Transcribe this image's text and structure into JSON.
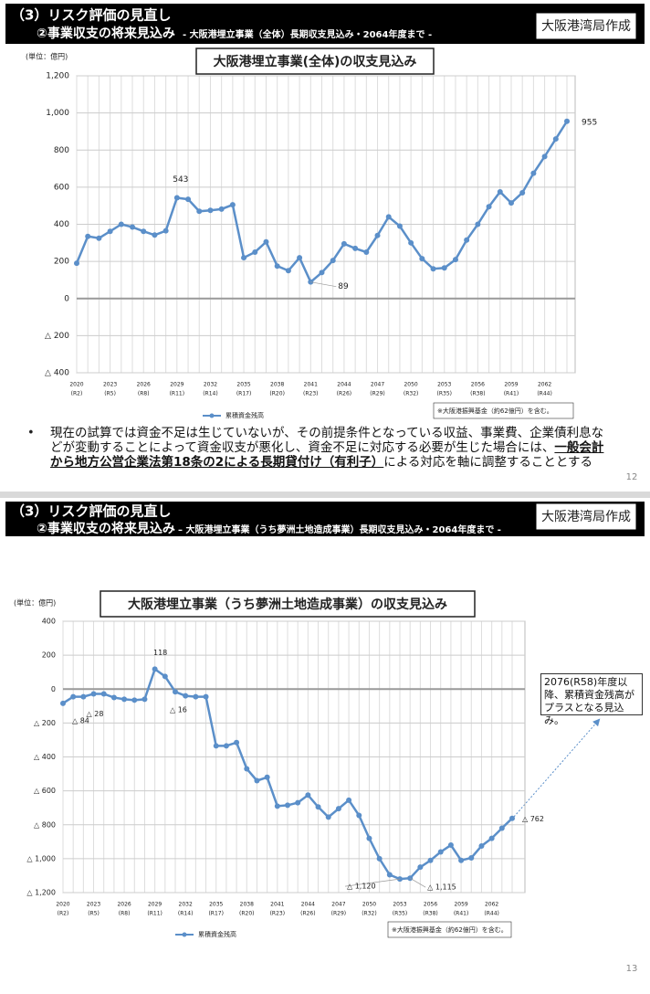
{
  "slides": [
    {
      "section": "（3）リスク評価の見直し",
      "subsection": "②事業収支の将来見込み",
      "subtitle": "- 大阪港埋立事業（全体）長期収支見込み・2064年度まで -",
      "author": "大阪港湾局作成",
      "page": "12",
      "body_before": "現在の試算では資金不足は生じていないが、その前提条件となっている収益、事業費、企業債利息などが変動することによって資金収支が悪化し、資金不足に対応する必要が生じた場合には、",
      "body_emphasis": "一般会計から地方公営企業法第18条の2による長期貸付け（有利子）",
      "body_after": "による対応を軸に調整することとする"
    },
    {
      "section": "（3）リスク評価の見直し",
      "subsection": "②事業収支の将来見込み",
      "subtitle": "– 大阪港埋立事業（うち夢洲土地造成事業）長期収支見込み・2064年度まで -",
      "author": "大阪港湾局作成",
      "page": "13"
    }
  ],
  "chart_data": [
    {
      "type": "line",
      "title": "大阪港埋立事業(全体)の収支見込み",
      "unit_label": "(単位：億円)",
      "note": "※大阪港振興基金（約62億円）を含む。",
      "x": [
        2020,
        2021,
        2022,
        2023,
        2024,
        2025,
        2026,
        2027,
        2028,
        2029,
        2030,
        2031,
        2032,
        2033,
        2034,
        2035,
        2036,
        2037,
        2038,
        2039,
        2040,
        2041,
        2042,
        2043,
        2044,
        2045,
        2046,
        2047,
        2048,
        2049,
        2050,
        2051,
        2052,
        2053,
        2054,
        2055,
        2056,
        2057,
        2058,
        2059,
        2060,
        2061,
        2062,
        2063,
        2064
      ],
      "xlim": [
        2020,
        2064
      ],
      "xticks": [
        2020,
        2023,
        2026,
        2029,
        2032,
        2035,
        2038,
        2041,
        2044,
        2047,
        2050,
        2053,
        2056,
        2059,
        2062
      ],
      "xtick_era_labels": [
        "(R2)",
        "(R5)",
        "(R8)",
        "(R11)",
        "(R14)",
        "(R17)",
        "(R20)",
        "(R23)",
        "(R26)",
        "(R29)",
        "(R32)",
        "(R35)",
        "(R38)",
        "(R41)",
        "(R44)"
      ],
      "ylim": [
        -400,
        1200
      ],
      "yticks": [
        {
          "value": 1200,
          "label": "1,200"
        },
        {
          "value": 1000,
          "label": "1,000"
        },
        800,
        600,
        400,
        200,
        0,
        {
          "value": -200,
          "label": "△ 200"
        },
        {
          "value": -400,
          "label": "△ 400"
        }
      ],
      "grid": true,
      "series": [
        {
          "name": "累積資金残高",
          "color": "#5b8fc9",
          "values": [
            190,
            335,
            325,
            362,
            400,
            385,
            362,
            342,
            365,
            543,
            535,
            470,
            475,
            482,
            505,
            220,
            250,
            305,
            175,
            150,
            220,
            89,
            140,
            205,
            295,
            270,
            250,
            340,
            440,
            390,
            300,
            215,
            160,
            165,
            210,
            315,
            400,
            495,
            575,
            515,
            570,
            675,
            765,
            860,
            955
          ],
          "value_labels": [
            null,
            null,
            null,
            null,
            null,
            null,
            null,
            null,
            null,
            "543",
            null,
            null,
            null,
            null,
            null,
            null,
            null,
            null,
            null,
            null,
            null,
            "89",
            null,
            null,
            null,
            null,
            null,
            null,
            null,
            null,
            null,
            null,
            null,
            null,
            null,
            null,
            null,
            null,
            null,
            null,
            null,
            null,
            null,
            null,
            "955"
          ]
        }
      ]
    },
    {
      "type": "line",
      "title": "大阪港埋立事業（うち夢洲土地造成事業）の収支見込み",
      "unit_label": "(単位：億円)",
      "note": "※大阪港振興基金（約62億円）を含む。",
      "annotation": "2076(R58)年度以降、累積資金残高がプラスとなる見込み。",
      "x": [
        2020,
        2021,
        2022,
        2023,
        2024,
        2025,
        2026,
        2027,
        2028,
        2029,
        2030,
        2031,
        2032,
        2033,
        2034,
        2035,
        2036,
        2037,
        2038,
        2039,
        2040,
        2041,
        2042,
        2043,
        2044,
        2045,
        2046,
        2047,
        2048,
        2049,
        2050,
        2051,
        2052,
        2053,
        2054,
        2055,
        2056,
        2057,
        2058,
        2059,
        2060,
        2061,
        2062,
        2063,
        2064
      ],
      "xlim": [
        2020,
        2064
      ],
      "xticks": [
        2020,
        2023,
        2026,
        2029,
        2032,
        2035,
        2038,
        2041,
        2044,
        2047,
        2050,
        2053,
        2056,
        2059,
        2062
      ],
      "xtick_era_labels": [
        "(R2)",
        "(R5)",
        "(R8)",
        "(R11)",
        "(R14)",
        "(R17)",
        "(R20)",
        "(R23)",
        "(R26)",
        "(R29)",
        "(R32)",
        "(R35)",
        "(R38)",
        "(R41)",
        "(R44)"
      ],
      "ylim": [
        -1200,
        400
      ],
      "yticks": [
        400,
        200,
        0,
        {
          "value": -200,
          "label": "△ 200"
        },
        {
          "value": -400,
          "label": "△ 400"
        },
        {
          "value": -600,
          "label": "△ 600"
        },
        {
          "value": -800,
          "label": "△ 800"
        },
        {
          "value": -1000,
          "label": "△ 1,000"
        },
        {
          "value": -1200,
          "label": "△ 1,200"
        }
      ],
      "grid": true,
      "series": [
        {
          "name": "累積資金残高",
          "color": "#5b8fc9",
          "values": [
            -84,
            -45,
            -45,
            -28,
            -28,
            -50,
            -60,
            -65,
            -60,
            118,
            75,
            -16,
            -40,
            -45,
            -45,
            -335,
            -335,
            -315,
            -470,
            -540,
            -520,
            -690,
            -685,
            -670,
            -625,
            -695,
            -755,
            -705,
            -655,
            -745,
            -880,
            -1000,
            -1095,
            -1120,
            -1115,
            -1050,
            -1010,
            -960,
            -920,
            -1010,
            -995,
            -925,
            -880,
            -820,
            -762
          ],
          "value_labels": [
            "△ 84",
            null,
            null,
            "△ 28",
            null,
            null,
            null,
            null,
            null,
            "118",
            null,
            "△ 16",
            null,
            null,
            null,
            null,
            null,
            null,
            null,
            null,
            null,
            null,
            null,
            null,
            null,
            null,
            null,
            null,
            null,
            null,
            null,
            null,
            null,
            "△ 1,120",
            "△ 1,115",
            null,
            null,
            null,
            null,
            null,
            null,
            null,
            null,
            null,
            "△ 762"
          ]
        }
      ]
    }
  ]
}
